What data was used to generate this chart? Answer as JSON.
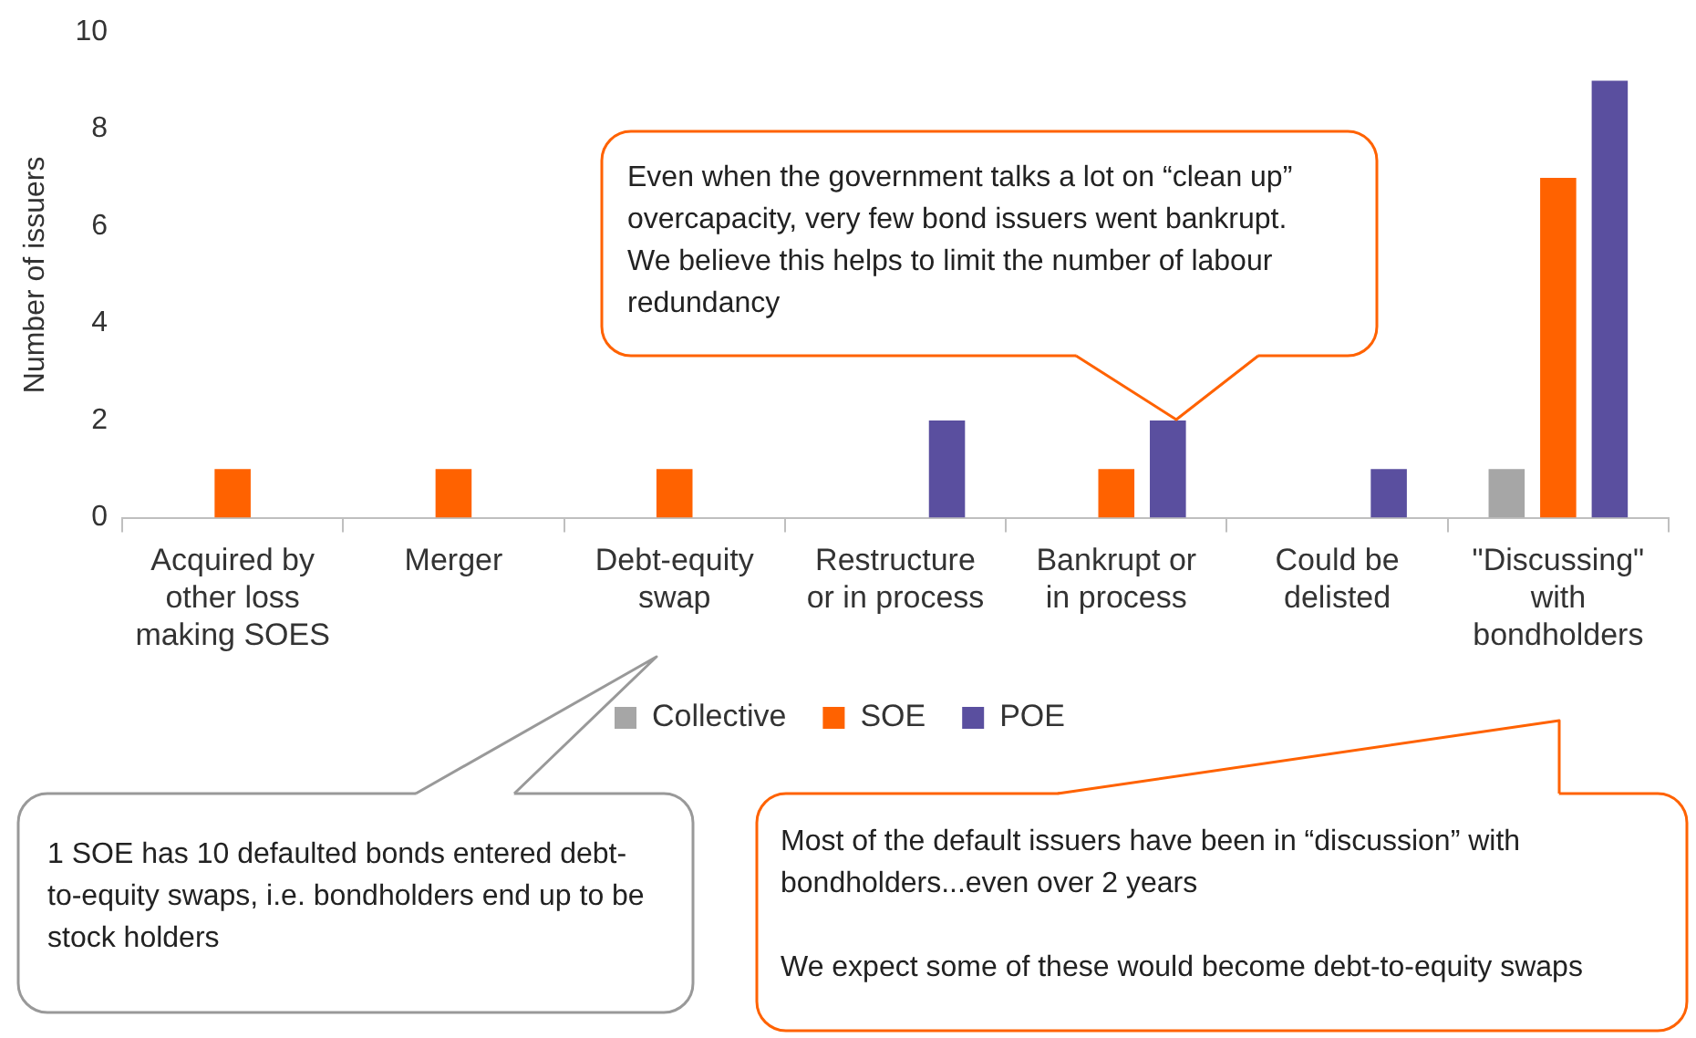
{
  "chart_data": {
    "type": "bar",
    "ylabel": "Number of issuers",
    "categories": [
      "Acquired by other loss making SOES",
      "Merger",
      "Debt-equity swap",
      "Restructure or in process",
      "Bankrupt or in process",
      "Could be delisted",
      "\"Discussing\" with bondholders"
    ],
    "series": [
      {
        "name": "Collective",
        "color": "#a6a6a6",
        "values": [
          0,
          0,
          0,
          0,
          0,
          0,
          1
        ]
      },
      {
        "name": "SOE",
        "color": "#ff6200",
        "values": [
          1,
          1,
          1,
          0,
          1,
          0,
          7
        ]
      },
      {
        "name": "POE",
        "color": "#5a4f9f",
        "values": [
          0,
          0,
          0,
          2,
          2,
          1,
          9
        ]
      }
    ],
    "ylim": [
      0,
      10
    ],
    "yticks": [
      0,
      2,
      4,
      6,
      8,
      10
    ],
    "grid": false,
    "legend": "bottom",
    "annotations": [
      "Even when the government talks a lot on “clean up” overcapacity, very few bond issuers went bankrupt. We believe this helps to limit the number of labour redundancy",
      "1 SOE has 10 defaulted bonds entered debt-to-equity swaps, i.e. bondholders end up to be stock holders",
      "Most of the default issuers have been in “discussion” with bondholders...even over 2 years\n\nWe expect some of these would become debt-to-equity swaps"
    ]
  }
}
